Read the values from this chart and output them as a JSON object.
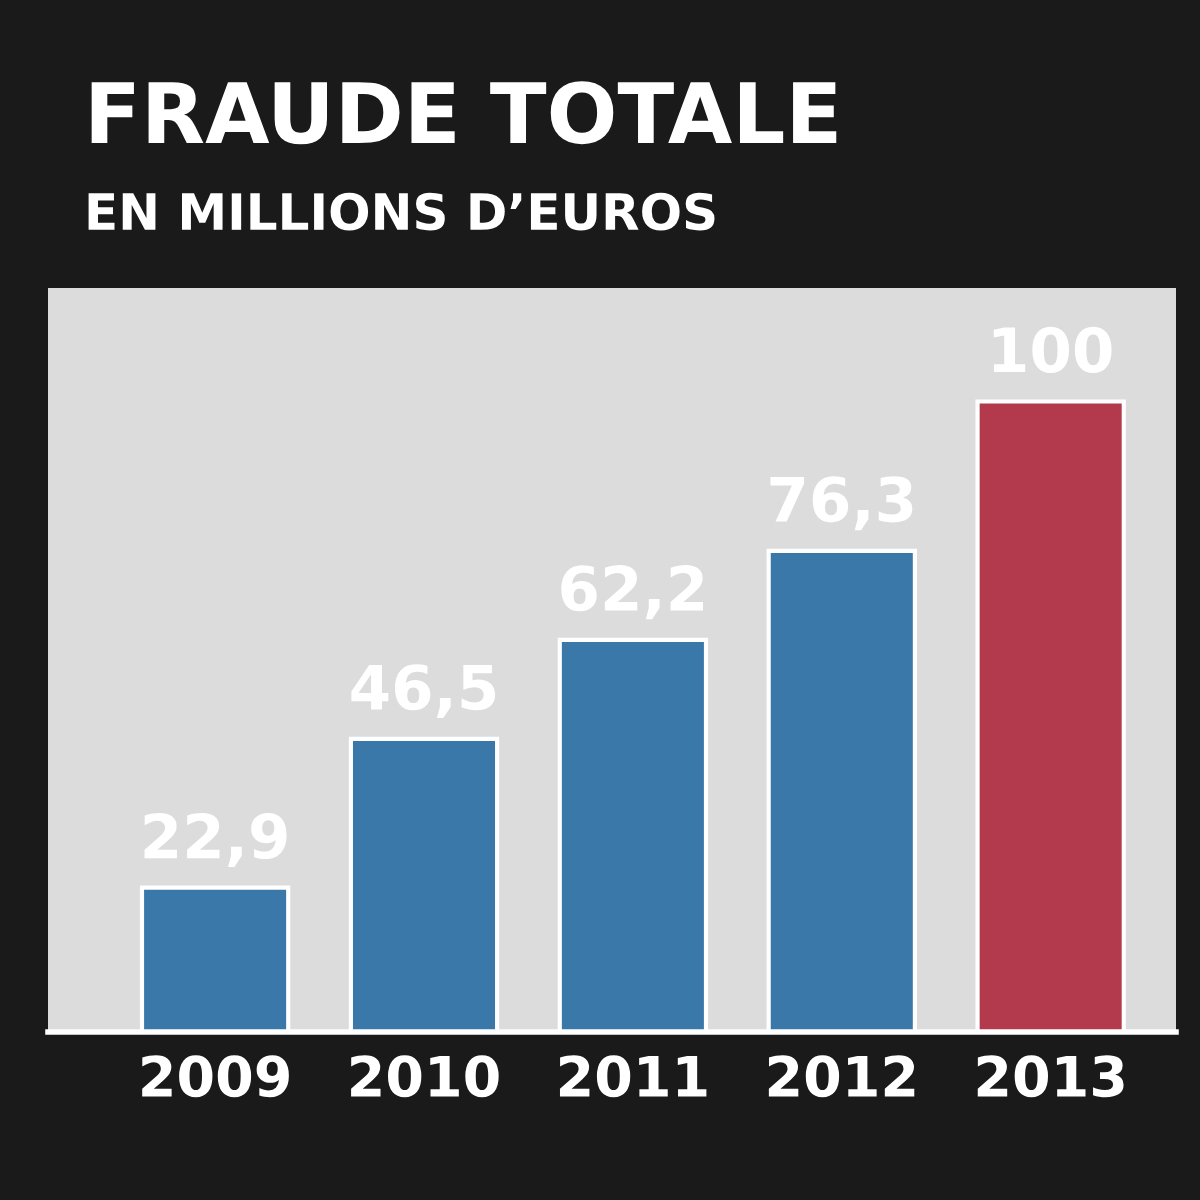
{
  "chart_data": {
    "type": "bar",
    "title": "FRAUDE TOTALE",
    "subtitle": "EN MILLIONS D’EUROS",
    "categories": [
      "2009",
      "2010",
      "2011",
      "2012",
      "2013"
    ],
    "values": [
      22.9,
      46.5,
      62.2,
      76.3,
      100
    ],
    "value_labels": [
      "22,9",
      "46,5",
      "62,2",
      "76,3",
      "100"
    ],
    "colors": [
      "#3a78aa",
      "#3a78aa",
      "#3a78aa",
      "#3a78aa",
      "#b23a4c"
    ]
  }
}
